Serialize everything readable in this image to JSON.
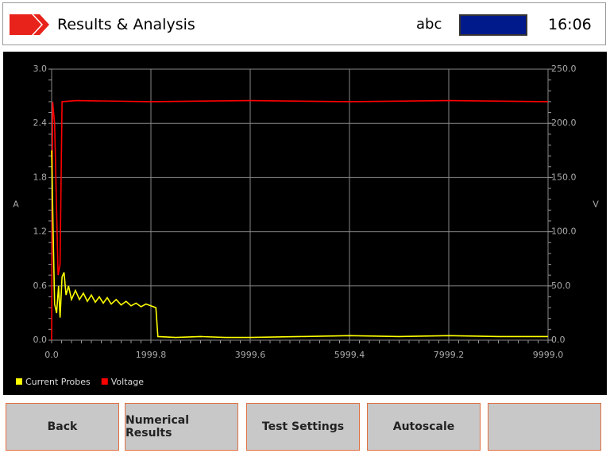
{
  "header": {
    "title": "Results & Analysis",
    "user": "abc",
    "time": "16:06"
  },
  "chart_data": {
    "type": "line",
    "y_label": "A",
    "y2_label": "V",
    "xlim": [
      0,
      9999
    ],
    "xticks": [
      {
        "value": 0,
        "label": "0.0"
      },
      1999.8,
      3999.6,
      5999.4,
      7999.2,
      {
        "value": 9999,
        "label": "9999.0"
      }
    ],
    "ylim": [
      0,
      3
    ],
    "yticks": [
      {
        "value": 0,
        "label": "0.0"
      },
      0.6,
      1.2,
      1.8,
      2.4,
      {
        "value": 3,
        "label": "3.0"
      }
    ],
    "y2lim": [
      0,
      250
    ],
    "y2ticks": [
      {
        "value": 0,
        "label": "0.0"
      },
      {
        "value": 50,
        "label": "50.0"
      },
      {
        "value": 100,
        "label": "100.0"
      },
      {
        "value": 150,
        "label": "150.0"
      },
      {
        "value": 200,
        "label": "200.0"
      },
      {
        "value": 250,
        "label": "250.0"
      }
    ],
    "grid": true,
    "series": [
      {
        "name": "Current Probes",
        "color": "#ffff00",
        "x": [
          0,
          30,
          60,
          100,
          140,
          170,
          210,
          250,
          290,
          340,
          400,
          480,
          560,
          640,
          720,
          800,
          880,
          960,
          1040,
          1120,
          1200,
          1300,
          1400,
          1500,
          1600,
          1700,
          1800,
          1900,
          2100,
          2140,
          2500,
          3000,
          3500,
          4000,
          5000,
          6000,
          7000,
          8000,
          9000,
          9999
        ],
        "values": [
          2.1,
          1.2,
          0.4,
          0.3,
          0.6,
          0.25,
          0.7,
          0.75,
          0.5,
          0.6,
          0.45,
          0.55,
          0.45,
          0.52,
          0.43,
          0.5,
          0.42,
          0.48,
          0.41,
          0.47,
          0.4,
          0.45,
          0.39,
          0.43,
          0.38,
          0.41,
          0.37,
          0.4,
          0.36,
          0.04,
          0.03,
          0.04,
          0.03,
          0.03,
          0.04,
          0.05,
          0.04,
          0.05,
          0.04,
          0.04
        ]
      },
      {
        "name": "Voltage",
        "color": "#ff0000",
        "axis": "y2",
        "x": [
          0,
          20,
          60,
          100,
          130,
          170,
          210,
          500,
          2000,
          4000,
          6000,
          8000,
          9999
        ],
        "values": [
          0,
          220,
          200,
          120,
          60,
          70,
          220,
          221,
          220,
          221,
          220,
          221,
          220
        ]
      }
    ]
  },
  "buttons": [
    "Back",
    "Numerical Results",
    "Test Settings",
    "Autoscale"
  ]
}
